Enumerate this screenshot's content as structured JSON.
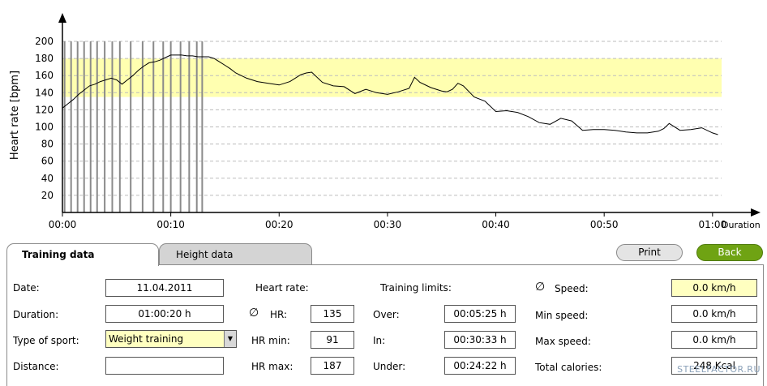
{
  "chart_data": {
    "type": "line",
    "ylabel": "Heart rate [bpm]",
    "xlabel": "Duration",
    "ylim": [
      0,
      200
    ],
    "yticks": [
      20,
      40,
      60,
      80,
      100,
      120,
      140,
      160,
      180,
      200
    ],
    "xlim": [
      0,
      60.5
    ],
    "xticks": [
      {
        "v": 0,
        "label": "00:00"
      },
      {
        "v": 10,
        "label": "00:10"
      },
      {
        "v": 20,
        "label": "00:20"
      },
      {
        "v": 30,
        "label": "00:30"
      },
      {
        "v": 40,
        "label": "00:40"
      },
      {
        "v": 50,
        "label": "00:50"
      },
      {
        "v": 60,
        "label": "01:00"
      }
    ],
    "grid": true,
    "band": {
      "from": 135,
      "to": 180,
      "color": "#ffffb0"
    },
    "markers_x": [
      0.2,
      0.8,
      1.4,
      2.0,
      2.6,
      3.2,
      3.9,
      4.6,
      5.3,
      6.3,
      7.4,
      8.4,
      9.3,
      10.0,
      10.9,
      11.7,
      12.4,
      12.9
    ],
    "series": [
      {
        "values_x": [
          0,
          0.5,
          1,
          1.5,
          2,
          2.5,
          3,
          3.5,
          4,
          4.5,
          5,
          5.5,
          6,
          6.5,
          7,
          7.5,
          8,
          8.5,
          9,
          9.5,
          10,
          10.5,
          11,
          11.5,
          12,
          12.5,
          13,
          13.5,
          14,
          14.5,
          15,
          15.5,
          16,
          17,
          18,
          19,
          20,
          21,
          22,
          22.5,
          23,
          24,
          25,
          26,
          27,
          28,
          29,
          30,
          31,
          32,
          32.5,
          33,
          34,
          35,
          35.5,
          36,
          36.5,
          37,
          38,
          39,
          40,
          41,
          42,
          43,
          44,
          45,
          46,
          47,
          48,
          49,
          50,
          51,
          52,
          53,
          54,
          55,
          55.5,
          56,
          57,
          58,
          59,
          60,
          60.5
        ],
        "values_y": [
          122,
          127,
          132,
          138,
          143,
          148,
          150,
          153,
          155,
          157,
          155,
          150,
          155,
          160,
          166,
          171,
          175,
          176,
          178,
          181,
          184,
          184,
          184,
          183,
          183,
          182,
          182,
          182,
          180,
          176,
          172,
          168,
          163,
          157,
          153,
          151,
          149,
          153,
          161,
          163,
          164,
          152,
          148,
          147,
          139,
          144,
          140,
          138,
          141,
          145,
          158,
          152,
          146,
          142,
          141,
          144,
          151,
          148,
          135,
          130,
          118,
          119,
          117,
          112,
          105,
          103,
          110,
          107,
          96,
          97,
          97,
          96,
          94,
          93,
          93,
          95,
          98,
          104,
          96,
          97,
          99,
          93,
          91
        ]
      }
    ]
  },
  "tabs": {
    "training": "Training data",
    "height": "Height data"
  },
  "buttons": {
    "print": "Print",
    "back": "Back"
  },
  "fields": {
    "date_label": "Date:",
    "date_value": "11.04.2011",
    "duration_label": "Duration:",
    "duration_value": "01:00:20 h",
    "sport_label": "Type of sport:",
    "sport_value": "Weight training",
    "distance_label": "Distance:",
    "distance_value": "",
    "heart_rate_label": "Heart rate:",
    "avg_symbol": "∅",
    "hr_label": "HR:",
    "hr_value": "135",
    "hr_min_label": "HR min:",
    "hr_min_value": "91",
    "hr_max_label": "HR max:",
    "hr_max_value": "187",
    "training_limits_label": "Training limits:",
    "over_label": "Over:",
    "over_value": "00:05:25 h",
    "in_label": "In:",
    "in_value": "00:30:33 h",
    "under_label": "Under:",
    "under_value": "00:24:22 h",
    "speed_label": "Speed:",
    "speed_value": "0.0 km/h",
    "min_speed_label": "Min speed:",
    "min_speed_value": "0.0 km/h",
    "max_speed_label": "Max speed:",
    "max_speed_value": "0.0 km/h",
    "calories_label": "Total calories:",
    "calories_value": "248 Kcal"
  },
  "watermark": "STEELFACTOR.RU"
}
